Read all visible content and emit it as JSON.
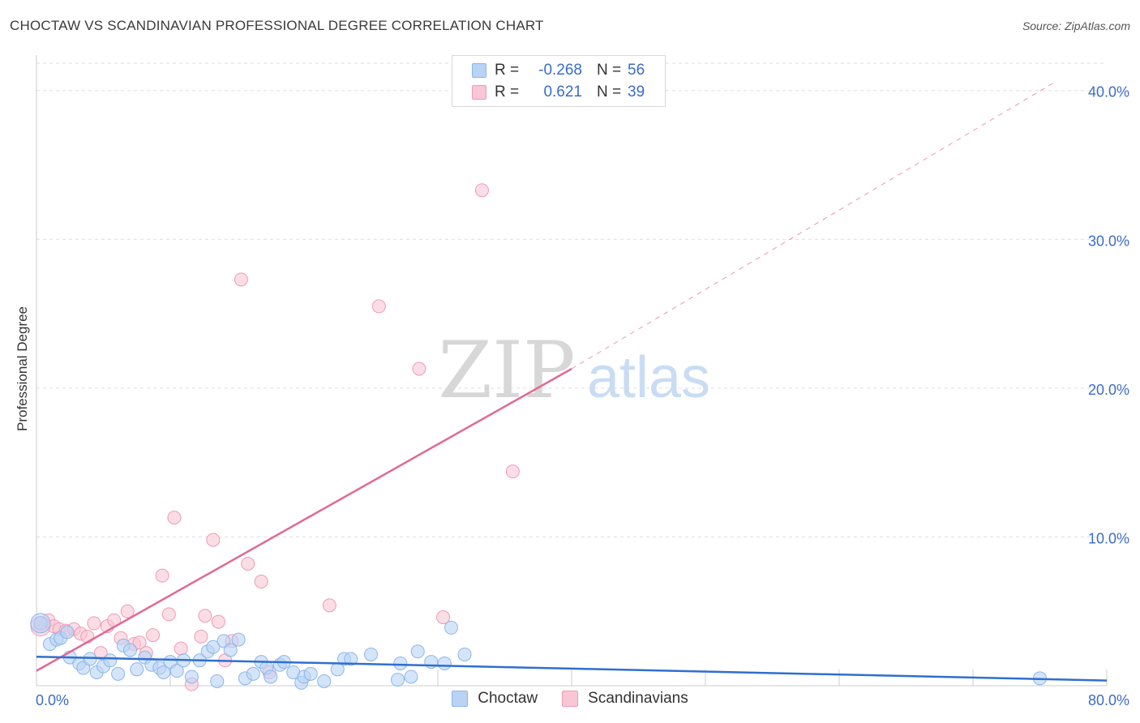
{
  "title": "CHOCTAW VS SCANDINAVIAN PROFESSIONAL DEGREE CORRELATION CHART",
  "source": "Source: ZipAtlas.com",
  "watermark": {
    "zip": "ZIP",
    "atlas": "atlas"
  },
  "stats": [
    {
      "r_label": "R =",
      "r_value": "-0.268",
      "n_label": "N =",
      "n_value": "56"
    },
    {
      "r_label": "R =",
      "r_value": "0.621",
      "n_label": "N =",
      "n_value": "39"
    }
  ],
  "legend": {
    "choctaw": "Choctaw",
    "scandinavians": "Scandinavians"
  },
  "colors": {
    "choctaw_fill": "#b9d3f5",
    "choctaw_stroke": "#8db5ea",
    "choctaw_line": "#2f6fd0",
    "scand_fill": "#f9c6d6",
    "scand_stroke": "#ef9bb6",
    "scand_line": "#e06a93",
    "axis_text": "#3b6cc9",
    "grid": "#dddddd"
  },
  "chart_data": {
    "type": "scatter",
    "title": "CHOCTAW VS SCANDINAVIAN PROFESSIONAL DEGREE CORRELATION CHART",
    "xlabel": "",
    "ylabel": "Professional Degree",
    "xlim": [
      0,
      80
    ],
    "ylim": [
      0,
      42
    ],
    "x_tick_labels": [
      "0.0%",
      "80.0%"
    ],
    "y_ticks": [
      10,
      20,
      30,
      40
    ],
    "y_tick_labels": [
      "10.0%",
      "20.0%",
      "30.0%",
      "40.0%"
    ],
    "series": [
      {
        "name": "Choctaw",
        "r": -0.268,
        "n": 56,
        "trend": {
          "x0": 0,
          "y0": 1.95,
          "x1": 80,
          "y1": 0.35
        },
        "points": [
          [
            0.3,
            4.2
          ],
          [
            1.0,
            2.8
          ],
          [
            1.5,
            3.1
          ],
          [
            1.8,
            3.2
          ],
          [
            2.3,
            3.6
          ],
          [
            2.5,
            1.9
          ],
          [
            3.2,
            1.5
          ],
          [
            3.5,
            1.2
          ],
          [
            4.0,
            1.8
          ],
          [
            4.5,
            0.9
          ],
          [
            5.0,
            1.3
          ],
          [
            5.5,
            1.7
          ],
          [
            6.1,
            0.8
          ],
          [
            6.5,
            2.7
          ],
          [
            7.0,
            2.4
          ],
          [
            7.5,
            1.1
          ],
          [
            8.1,
            1.9
          ],
          [
            8.6,
            1.4
          ],
          [
            9.2,
            1.2
          ],
          [
            9.5,
            0.9
          ],
          [
            10.0,
            1.6
          ],
          [
            10.5,
            1.0
          ],
          [
            11.0,
            1.7
          ],
          [
            11.6,
            0.6
          ],
          [
            12.2,
            1.7
          ],
          [
            12.8,
            2.3
          ],
          [
            13.2,
            2.6
          ],
          [
            13.5,
            0.3
          ],
          [
            14.0,
            3.0
          ],
          [
            14.5,
            2.4
          ],
          [
            15.1,
            3.1
          ],
          [
            15.6,
            0.5
          ],
          [
            16.2,
            0.8
          ],
          [
            16.8,
            1.6
          ],
          [
            17.2,
            1.2
          ],
          [
            17.5,
            0.6
          ],
          [
            18.2,
            1.4
          ],
          [
            18.5,
            1.6
          ],
          [
            19.2,
            0.9
          ],
          [
            19.8,
            0.2
          ],
          [
            20.0,
            0.6
          ],
          [
            20.5,
            0.8
          ],
          [
            21.5,
            0.3
          ],
          [
            22.5,
            1.1
          ],
          [
            23.0,
            1.8
          ],
          [
            23.5,
            1.8
          ],
          [
            25.0,
            2.1
          ],
          [
            27.0,
            0.4
          ],
          [
            27.2,
            1.5
          ],
          [
            28.0,
            0.6
          ],
          [
            28.5,
            2.3
          ],
          [
            29.5,
            1.6
          ],
          [
            30.5,
            1.5
          ],
          [
            31.0,
            3.9
          ],
          [
            32.0,
            2.1
          ],
          [
            75.0,
            0.5
          ]
        ]
      },
      {
        "name": "Scandinavians",
        "r": 0.621,
        "n": 39,
        "trend": {
          "x0": 0,
          "y0": 1.0,
          "x1": 40,
          "y1": 21.3,
          "x_end_dashed": 76,
          "y_end_dashed": 40.5
        },
        "points": [
          [
            0.3,
            4.0
          ],
          [
            0.9,
            4.4
          ],
          [
            1.3,
            4.0
          ],
          [
            1.7,
            3.8
          ],
          [
            2.2,
            3.7
          ],
          [
            2.8,
            3.8
          ],
          [
            3.3,
            3.5
          ],
          [
            3.8,
            3.3
          ],
          [
            4.3,
            4.2
          ],
          [
            4.8,
            2.2
          ],
          [
            5.3,
            4.0
          ],
          [
            5.8,
            4.4
          ],
          [
            6.3,
            3.2
          ],
          [
            6.8,
            5.0
          ],
          [
            7.3,
            2.8
          ],
          [
            7.7,
            2.9
          ],
          [
            8.2,
            2.2
          ],
          [
            8.7,
            3.4
          ],
          [
            9.4,
            7.4
          ],
          [
            9.9,
            4.8
          ],
          [
            10.3,
            11.3
          ],
          [
            10.8,
            2.5
          ],
          [
            11.6,
            0.1
          ],
          [
            12.3,
            3.3
          ],
          [
            12.6,
            4.7
          ],
          [
            13.2,
            9.8
          ],
          [
            13.6,
            4.3
          ],
          [
            14.1,
            1.7
          ],
          [
            14.6,
            3.0
          ],
          [
            15.3,
            27.3
          ],
          [
            15.8,
            8.2
          ],
          [
            16.8,
            7.0
          ],
          [
            17.4,
            0.9
          ],
          [
            21.9,
            5.4
          ],
          [
            25.6,
            25.5
          ],
          [
            28.6,
            21.3
          ],
          [
            30.4,
            4.6
          ],
          [
            33.3,
            33.3
          ],
          [
            35.6,
            14.4
          ]
        ]
      }
    ]
  }
}
